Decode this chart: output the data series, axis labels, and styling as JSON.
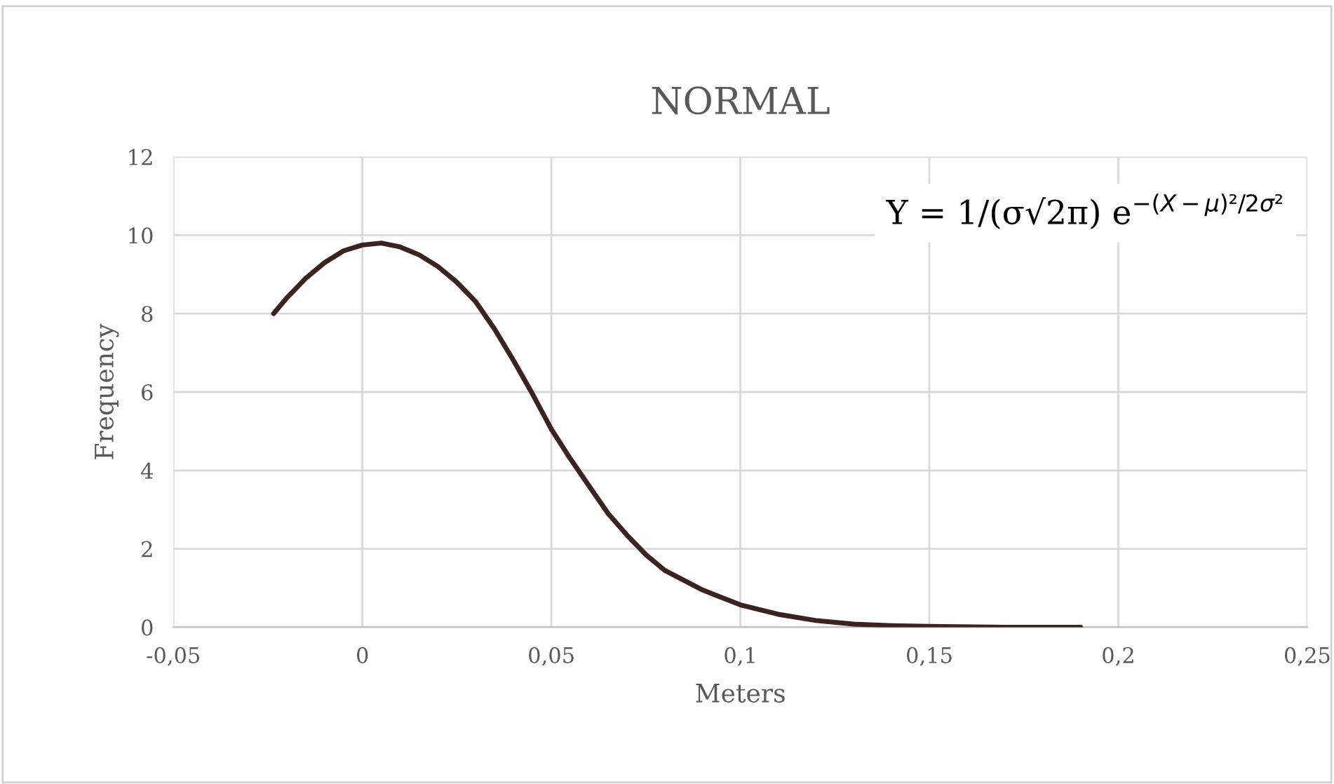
{
  "chart_data": {
    "type": "line",
    "title": "NORMAL",
    "xlabel": "Meters",
    "ylabel": "Frequency",
    "series": [
      {
        "color": "#3b2320",
        "x": [
          -0.0235,
          -0.02,
          -0.015,
          -0.01,
          -0.005,
          0,
          0.005,
          0.01,
          0.015,
          0.02,
          0.025,
          0.03,
          0.035,
          0.04,
          0.045,
          0.05,
          0.055,
          0.06,
          0.065,
          0.07,
          0.075,
          0.08,
          0.09,
          0.1,
          0.11,
          0.12,
          0.13,
          0.14,
          0.15,
          0.17,
          0.19
        ],
        "values": [
          8.0,
          8.4,
          8.9,
          9.3,
          9.6,
          9.75,
          9.8,
          9.7,
          9.5,
          9.2,
          8.8,
          8.3,
          7.6,
          6.8,
          5.95,
          5.05,
          4.3,
          3.6,
          2.9,
          2.35,
          1.85,
          1.45,
          0.95,
          0.57,
          0.33,
          0.17,
          0.08,
          0.04,
          0.02,
          0.0,
          0.0
        ]
      }
    ],
    "xlim": [
      -0.05,
      0.25
    ],
    "xticks": [
      {
        "value": -0.05,
        "label": "-0,05"
      },
      {
        "value": 0,
        "label": "0"
      },
      {
        "value": 0.05,
        "label": "0,05"
      },
      {
        "value": 0.1,
        "label": "0,1"
      },
      {
        "value": 0.15,
        "label": "0,15"
      },
      {
        "value": 0.2,
        "label": "0,2"
      },
      {
        "value": 0.25,
        "label": "0,25"
      }
    ],
    "ylim": [
      0,
      12
    ],
    "yticks": [
      0,
      2,
      4,
      6,
      8,
      10,
      12
    ],
    "grid": true,
    "marker": "none",
    "line_style": "solid",
    "annotations": [
      {
        "text": "Y = 1/(σ√2π) e$^{−(X−μ)²/2σ²}$"
      }
    ]
  }
}
